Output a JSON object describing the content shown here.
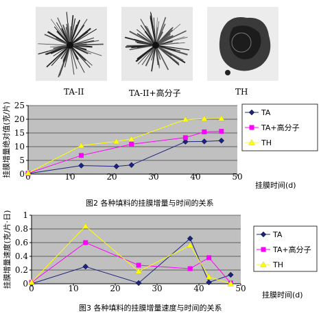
{
  "photos": [
    {
      "label": "TA-II",
      "kind": "radial"
    },
    {
      "label": "TA-II+高分子",
      "kind": "radial"
    },
    {
      "label": "TH",
      "kind": "blob"
    }
  ],
  "figures": [
    {
      "caption": "图2  各种填料的挂膜增量与时间的关系"
    },
    {
      "caption": "图3  各种填料的挂膜增量速度与时间的关系"
    }
  ],
  "chart_data": [
    {
      "type": "line",
      "ylabel": "挂膜增量绝对值(克/片)",
      "xlabel": "挂膜时间(d)",
      "xlim": [
        0,
        50
      ],
      "ylim": [
        0,
        25
      ],
      "xticks": [
        0,
        10,
        20,
        30,
        40,
        50
      ],
      "yticks": [
        0,
        5,
        10,
        15,
        20,
        25
      ],
      "grid": true,
      "legend_position": "right",
      "series": [
        {
          "name": "TA",
          "color": "#1a237e",
          "marker": "diamond",
          "x": [
            0,
            12.7,
            21.1,
            24.7,
            37.6,
            42.1,
            46.2
          ],
          "y": [
            0.2,
            3.1,
            2.8,
            3.3,
            11.8,
            11.9,
            12.2
          ]
        },
        {
          "name": "TA+高分子",
          "color": "#ff00ff",
          "marker": "square",
          "x": [
            0,
            12.7,
            24.7,
            37.6,
            42.1,
            46.2
          ],
          "y": [
            0.3,
            6.8,
            10.9,
            13.3,
            15.4,
            15.6
          ]
        },
        {
          "name": "TH",
          "color": "#ffff00",
          "marker": "triangle",
          "x": [
            0,
            12.7,
            21.1,
            24.7,
            37.6,
            42.1,
            46.2
          ],
          "y": [
            0.4,
            10.4,
            11.9,
            12.8,
            19.9,
            20.2,
            20.3
          ]
        }
      ]
    },
    {
      "type": "line",
      "ylabel": "挂膜增量速度(克/片·日)",
      "xlabel": "挂膜时间(d)",
      "xlim": [
        0,
        50
      ],
      "ylim": [
        0,
        1
      ],
      "xticks": [
        0,
        10,
        20,
        30,
        40,
        50
      ],
      "yticks": [
        0,
        0.2,
        0.4,
        0.6,
        0.8,
        1
      ],
      "grid": true,
      "legend_position": "right",
      "series": [
        {
          "name": "TA",
          "color": "#1a237e",
          "marker": "diamond",
          "x": [
            0,
            12.9,
            25.6,
            37.9,
            42.4,
            47.6
          ],
          "y": [
            0,
            0.25,
            0.01,
            0.66,
            0.02,
            0.13
          ]
        },
        {
          "name": "TA+高分子",
          "color": "#ff00ff",
          "marker": "square",
          "x": [
            0,
            12.9,
            25.6,
            37.9,
            42.4,
            47.6
          ],
          "y": [
            0.02,
            0.6,
            0.27,
            0.22,
            0.38,
            0.01
          ]
        },
        {
          "name": "TH",
          "color": "#ffff00",
          "marker": "triangle",
          "x": [
            0,
            12.9,
            25.6,
            37.9,
            42.4,
            47.6
          ],
          "y": [
            0.02,
            0.84,
            0.18,
            0.56,
            0.1,
            0
          ]
        }
      ]
    }
  ]
}
